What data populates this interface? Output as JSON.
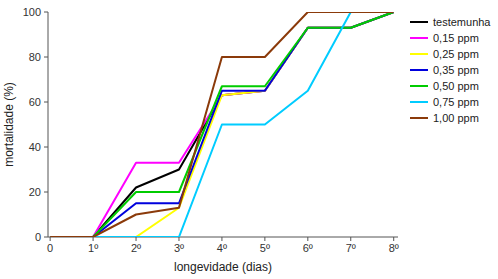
{
  "chart_data": {
    "type": "line",
    "x": [
      0,
      1,
      2,
      3,
      4,
      5,
      6,
      7,
      8
    ],
    "series": [
      {
        "name": "testemunha",
        "color": "#000000",
        "values": [
          0,
          0,
          22,
          30,
          63,
          65,
          93,
          93,
          100
        ]
      },
      {
        "name": "0,15 ppm",
        "color": "#ff00ff",
        "values": [
          0,
          0,
          33,
          33,
          63,
          65,
          93,
          93,
          100
        ]
      },
      {
        "name": "0,25 ppm",
        "color": "#ffff00",
        "values": [
          0,
          0,
          0,
          13,
          63,
          65,
          93,
          93,
          100
        ]
      },
      {
        "name": "0,35 ppm",
        "color": "#0000dd",
        "values": [
          0,
          0,
          15,
          15,
          65,
          65,
          93,
          93,
          100
        ]
      },
      {
        "name": "0,50 ppm",
        "color": "#00cc00",
        "values": [
          0,
          0,
          20,
          20,
          67,
          67,
          93,
          93,
          100
        ]
      },
      {
        "name": "0,75 ppm",
        "color": "#00ccff",
        "values": [
          0,
          0,
          0,
          0,
          50,
          50,
          65,
          100,
          100
        ]
      },
      {
        "name": "1,00 ppm",
        "color": "#8B3A0A",
        "values": [
          0,
          0,
          10,
          13,
          80,
          80,
          100,
          100,
          100
        ]
      }
    ],
    "x_label": "longevidade (dias)",
    "y_label": "mortalidade (%)",
    "xlim": [
      -0.05,
      8.1
    ],
    "ylim": [
      0,
      100
    ],
    "xticks": [
      0,
      {
        "value": 1,
        "label": "1º"
      },
      {
        "value": 2,
        "label": "2º"
      },
      {
        "value": 3,
        "label": "3º"
      },
      {
        "value": 4,
        "label": "4º"
      },
      {
        "value": 5,
        "label": "5º"
      },
      {
        "value": 6,
        "label": "6º"
      },
      {
        "value": 7,
        "label": "7º"
      },
      {
        "value": 8,
        "label": "8º"
      }
    ],
    "yticks": [
      0,
      20,
      40,
      60,
      80,
      100
    ],
    "grid": false,
    "legend": "right"
  }
}
